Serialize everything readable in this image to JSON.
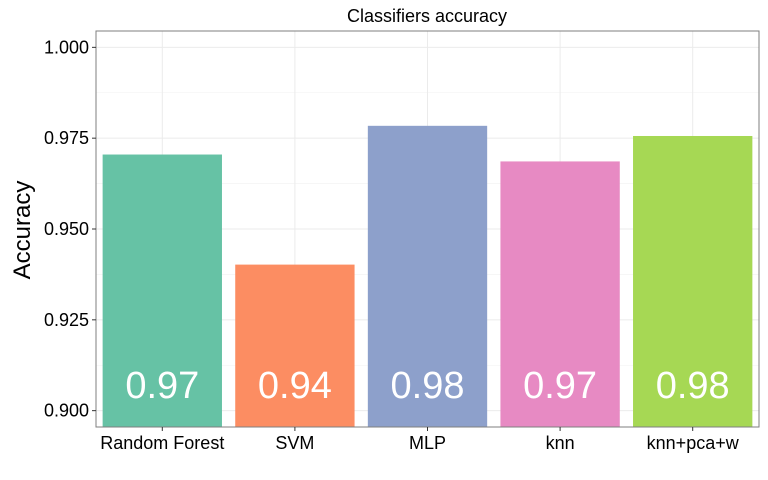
{
  "chart_data": {
    "type": "bar",
    "title": "Classifiers accuracy",
    "xlabel": "",
    "ylabel": "Accuracy",
    "categories": [
      "Random Forest",
      "SVM",
      "MLP",
      "knn",
      "knn+pca+w"
    ],
    "values": [
      0.9705,
      0.9402,
      0.9784,
      0.9686,
      0.9756
    ],
    "data_labels": [
      "0.97",
      "0.94",
      "0.98",
      "0.97",
      "0.98"
    ],
    "colors": [
      "#66c2a5",
      "#fc8d62",
      "#8da0cb",
      "#e78ac3",
      "#a6d854"
    ],
    "ylim": [
      0.8955,
      1.0045
    ],
    "yticks": [
      0.9,
      0.925,
      0.95,
      0.975,
      1.0
    ],
    "ytick_labels": [
      "0.900",
      "0.925",
      "0.950",
      "0.975",
      "1.000"
    ],
    "grid": true,
    "legend": "none"
  }
}
